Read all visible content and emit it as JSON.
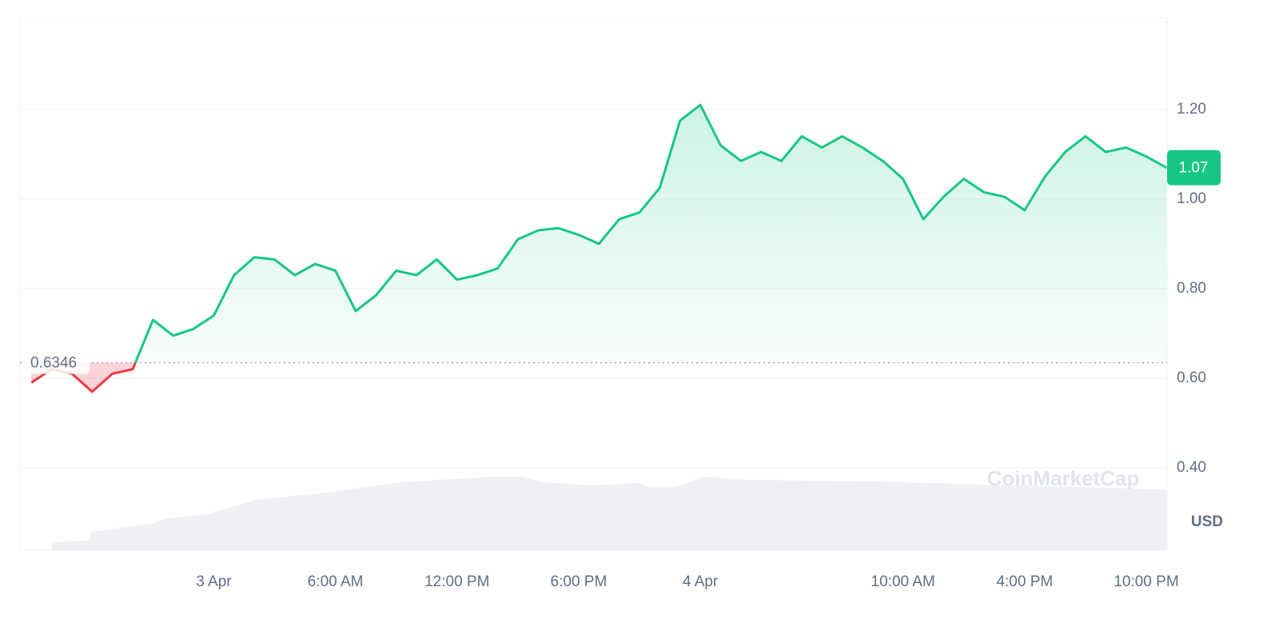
{
  "chart_data": {
    "type": "line",
    "categories": [
      null,
      null,
      null,
      null,
      null,
      null,
      null,
      null,
      null,
      "3 Apr",
      null,
      null,
      null,
      null,
      null,
      "6:00 AM",
      null,
      null,
      null,
      null,
      null,
      "12:00 PM",
      null,
      null,
      null,
      null,
      null,
      "6:00 PM",
      null,
      null,
      null,
      null,
      null,
      "4 Apr",
      null,
      null,
      null,
      null,
      null,
      null,
      null,
      null,
      null,
      "10:00 AM",
      null,
      null,
      null,
      null,
      null,
      "4:00 PM",
      null,
      null,
      null,
      null,
      null,
      "10:00 PM",
      null
    ],
    "series": [
      {
        "values": [
          0.59,
          0.62,
          0.61,
          0.57,
          0.61,
          0.62,
          0.73,
          0.695,
          0.71,
          0.74,
          0.83,
          0.87,
          0.865,
          0.83,
          0.855,
          0.84,
          0.75,
          0.785,
          0.84,
          0.83,
          0.865,
          0.82,
          0.83,
          0.845,
          0.91,
          0.93,
          0.935,
          0.92,
          0.9,
          0.955,
          0.97,
          1.025,
          1.175,
          1.21,
          1.12,
          1.085,
          1.105,
          1.085,
          1.14,
          1.115,
          1.14,
          1.115,
          1.085,
          1.045,
          0.955,
          1.005,
          1.045,
          1.015,
          1.005,
          0.975,
          1.05,
          1.105,
          1.14,
          1.105,
          1.115,
          1.095,
          1.07
        ],
        "color": "#16c784",
        "down_color": "#ea3943"
      }
    ],
    "reference_price": 0.6346,
    "current_price": 1.07,
    "ylim": [
      0.216,
      1.405
    ],
    "yticks": [
      {
        "value": 0.4,
        "label": "0.40"
      },
      {
        "value": 0.6,
        "label": "0.60"
      },
      {
        "value": 0.8,
        "label": "0.80"
      },
      {
        "value": 1.0,
        "label": "1.00"
      },
      {
        "value": 1.2,
        "label": "1.20"
      }
    ],
    "y_unit": "USD",
    "watermark": "CoinMarketCap",
    "grid": true
  }
}
